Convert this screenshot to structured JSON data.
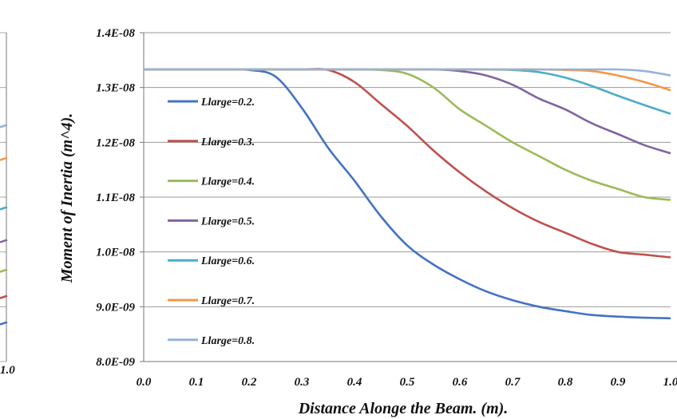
{
  "chart_data": [
    {
      "type": "line",
      "note_partial": "cropped neighbouring chart at left edge",
      "x_tick_labels": [
        "1.0"
      ],
      "colors": [
        "#4472C4",
        "#C0504D",
        "#9BBB59",
        "#8064A2",
        "#4BACC6",
        "#F79646",
        "#95B3D7"
      ],
      "right_edge_levels": [
        0.72,
        0.62,
        0.47,
        0.37,
        0.28,
        0.2,
        0.12
      ]
    },
    {
      "type": "line",
      "title": "",
      "xlabel": "Distance Alonge the Beam. (m).",
      "ylabel": "Moment of Inertia (m^4).",
      "xlim": [
        0,
        1
      ],
      "ylim": [
        8e-09,
        1.4e-08
      ],
      "x_tick_labels": [
        "0.0",
        "0.1",
        "0.2",
        "0.3",
        "0.4",
        "0.5",
        "0.6",
        "0.7",
        "0.8",
        "0.9",
        "1.0"
      ],
      "y_tick_labels": [
        "8.0E-09",
        "9.0E-09",
        "1.0E-08",
        "1.1E-08",
        "1.2E-08",
        "1.3E-08",
        "1.4E-08"
      ],
      "grid": true,
      "legend_position": "left",
      "x": [
        0.0,
        0.05,
        0.1,
        0.15,
        0.2,
        0.25,
        0.3,
        0.35,
        0.4,
        0.45,
        0.5,
        0.55,
        0.6,
        0.65,
        0.7,
        0.75,
        0.8,
        0.85,
        0.9,
        0.95,
        1.0
      ],
      "series": [
        {
          "name": "Llarge=0.2.",
          "color": "#4472C4",
          "values": [
            1.333e-08,
            1.333e-08,
            1.333e-08,
            1.333e-08,
            1.332e-08,
            1.32e-08,
            1.263e-08,
            1.19e-08,
            1.13e-08,
            1.065e-08,
            1.012e-08,
            9.77e-09,
            9.5e-09,
            9.28e-09,
            9.12e-09,
            9e-09,
            8.92e-09,
            8.85e-09,
            8.82e-09,
            8.8e-09,
            8.79e-09
          ]
        },
        {
          "name": "Llarge=0.3.",
          "color": "#C0504D",
          "values": [
            1.333e-08,
            1.333e-08,
            1.333e-08,
            1.333e-08,
            1.333e-08,
            1.333e-08,
            1.333e-08,
            1.332e-08,
            1.31e-08,
            1.27e-08,
            1.23e-08,
            1.185e-08,
            1.145e-08,
            1.11e-08,
            1.08e-08,
            1.055e-08,
            1.035e-08,
            1.015e-08,
            1e-08,
            9.95e-09,
            9.9e-09
          ]
        },
        {
          "name": "Llarge=0.4.",
          "color": "#9BBB59",
          "values": [
            1.333e-08,
            1.333e-08,
            1.333e-08,
            1.333e-08,
            1.333e-08,
            1.333e-08,
            1.333e-08,
            1.333e-08,
            1.333e-08,
            1.332e-08,
            1.325e-08,
            1.3e-08,
            1.26e-08,
            1.23e-08,
            1.2e-08,
            1.175e-08,
            1.15e-08,
            1.13e-08,
            1.115e-08,
            1.1e-08,
            1.095e-08
          ]
        },
        {
          "name": "Llarge=0.5.",
          "color": "#8064A2",
          "values": [
            1.333e-08,
            1.333e-08,
            1.333e-08,
            1.333e-08,
            1.333e-08,
            1.333e-08,
            1.333e-08,
            1.333e-08,
            1.333e-08,
            1.333e-08,
            1.333e-08,
            1.333e-08,
            1.33e-08,
            1.322e-08,
            1.305e-08,
            1.28e-08,
            1.26e-08,
            1.235e-08,
            1.215e-08,
            1.195e-08,
            1.18e-08
          ]
        },
        {
          "name": "Llarge=0.6.",
          "color": "#4BACC6",
          "values": [
            1.333e-08,
            1.333e-08,
            1.333e-08,
            1.333e-08,
            1.333e-08,
            1.333e-08,
            1.333e-08,
            1.333e-08,
            1.333e-08,
            1.333e-08,
            1.333e-08,
            1.333e-08,
            1.333e-08,
            1.333e-08,
            1.332e-08,
            1.328e-08,
            1.318e-08,
            1.303e-08,
            1.285e-08,
            1.268e-08,
            1.252e-08
          ]
        },
        {
          "name": "Llarge=0.7.",
          "color": "#F79646",
          "values": [
            1.333e-08,
            1.333e-08,
            1.333e-08,
            1.333e-08,
            1.333e-08,
            1.333e-08,
            1.333e-08,
            1.333e-08,
            1.333e-08,
            1.333e-08,
            1.333e-08,
            1.333e-08,
            1.333e-08,
            1.333e-08,
            1.333e-08,
            1.333e-08,
            1.332e-08,
            1.33e-08,
            1.322e-08,
            1.31e-08,
            1.295e-08
          ]
        },
        {
          "name": "Llarge=0.8.",
          "color": "#95B3D7",
          "values": [
            1.333e-08,
            1.333e-08,
            1.333e-08,
            1.333e-08,
            1.333e-08,
            1.333e-08,
            1.333e-08,
            1.333e-08,
            1.333e-08,
            1.333e-08,
            1.333e-08,
            1.333e-08,
            1.333e-08,
            1.333e-08,
            1.333e-08,
            1.333e-08,
            1.333e-08,
            1.333e-08,
            1.333e-08,
            1.33e-08,
            1.322e-08
          ]
        }
      ]
    }
  ]
}
